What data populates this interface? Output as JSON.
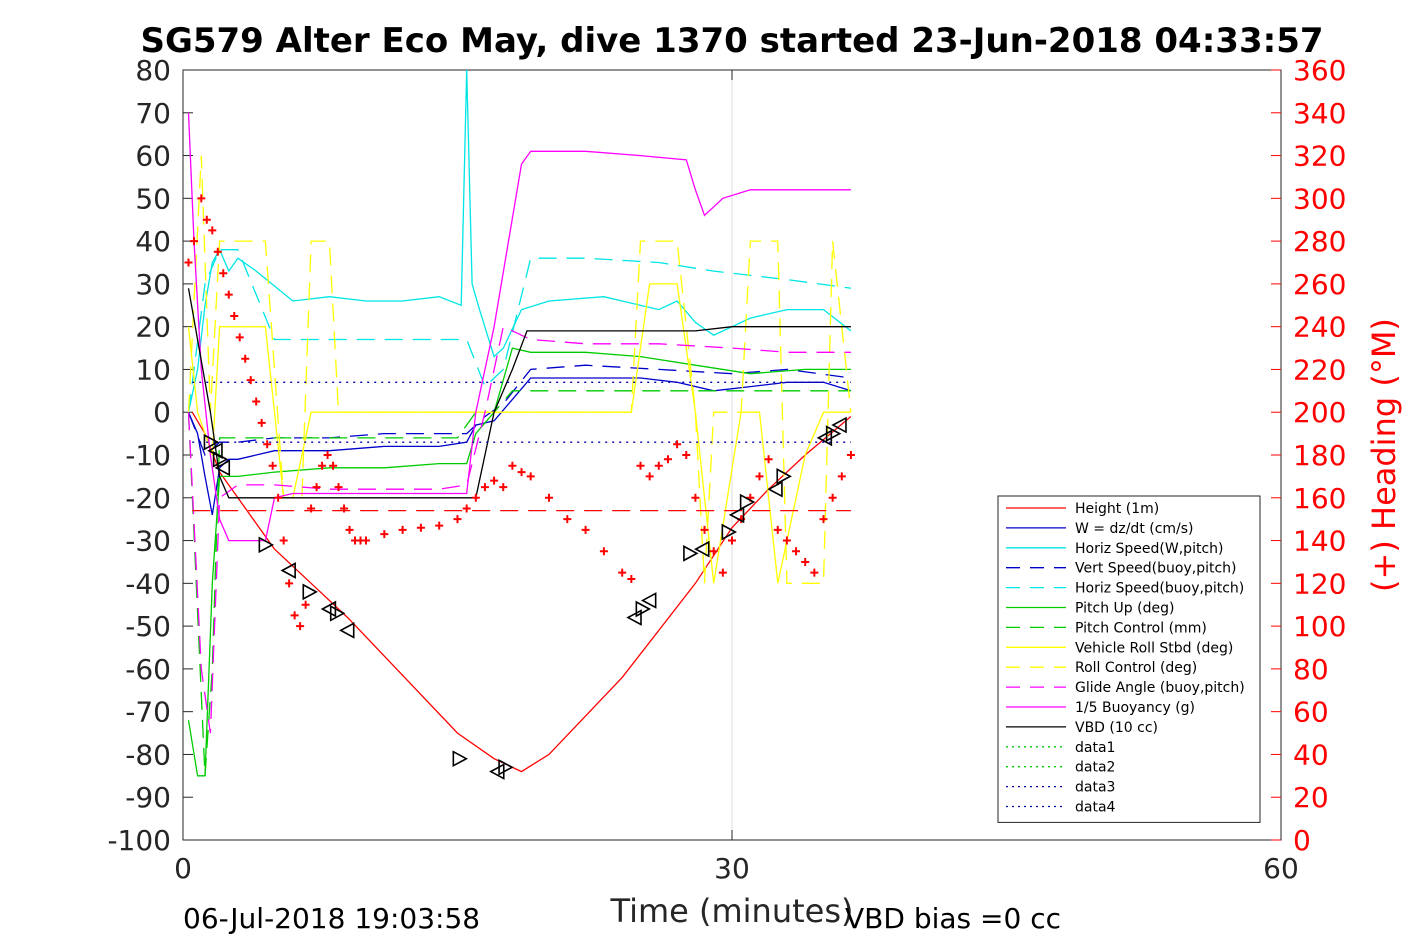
{
  "chart_data": {
    "type": "line",
    "title": "SG579 Alter Eco May, dive 1370 started 23-Jun-2018 04:33:57",
    "xlabel": "Time (minutes)",
    "ylabel": "",
    "y2label": "(+) Heading (°M)",
    "xlim": [
      0,
      60
    ],
    "ylim": [
      -100,
      80
    ],
    "y2lim": [
      0,
      360
    ],
    "xticks": [
      "0",
      "30",
      "60"
    ],
    "yticks": [
      "80",
      "70",
      "60",
      "50",
      "40",
      "30",
      "20",
      "10",
      "0",
      "-10",
      "-20",
      "-30",
      "-40",
      "-50",
      "-60",
      "-70",
      "-80",
      "-90",
      "-100"
    ],
    "y2ticks": [
      "360",
      "340",
      "320",
      "300",
      "280",
      "260",
      "240",
      "220",
      "200",
      "180",
      "160",
      "140",
      "120",
      "100",
      "80",
      "60",
      "40",
      "20",
      "0"
    ],
    "grid": "x-major",
    "legend_position": "lower-right",
    "footer_left": "06-Jul-2018 19:03:58",
    "footer_right": "VBD bias =0 cc",
    "series": [
      {
        "name": "Height (1m)",
        "color": "#ff0000",
        "style": "solid",
        "x": [
          0.5,
          1.2,
          2.0,
          3.0,
          5.0,
          7.0,
          9.0,
          11.0,
          13.0,
          15.0,
          17.0,
          18.5,
          20.0,
          22.0,
          24.0,
          26.0,
          28.0,
          30.0,
          32.0,
          34.0,
          36.5
        ],
        "y": [
          0,
          -5,
          -14,
          -20,
          -32,
          -40,
          -48,
          -57,
          -66,
          -75,
          -81,
          -84,
          -80,
          -71,
          -62,
          -51,
          -40,
          -27,
          -18,
          -10,
          -1
        ]
      },
      {
        "name": "W = dz/dt (cm/s)",
        "color": "#0000cc",
        "style": "solid",
        "x": [
          0.3,
          0.8,
          1.2,
          1.6,
          2.0,
          2.5,
          3.0,
          5.0,
          8.0,
          11.0,
          14.0,
          15.5,
          16.0,
          17.0,
          18.0,
          19.0,
          22.0,
          25.0,
          27.0,
          29.0,
          31.0,
          33.0,
          35.0,
          36.5
        ],
        "y": [
          0,
          -5,
          -15,
          -24,
          -13,
          -11,
          -11,
          -9,
          -9,
          -8,
          -8,
          -7,
          -3,
          -2,
          3,
          8,
          8,
          8,
          7,
          5,
          6,
          7,
          7,
          5
        ]
      },
      {
        "name": "Horiz Speed(W,pitch)",
        "color": "#00e5e5",
        "style": "solid",
        "x": [
          0.3,
          0.8,
          1.2,
          1.6,
          2.0,
          2.5,
          3.0,
          4.0,
          6.0,
          8.0,
          10.0,
          12.0,
          14.0,
          15.2,
          15.5,
          15.8,
          16.2,
          17.0,
          17.5,
          18.5,
          20.0,
          23.0,
          26.0,
          27.0,
          28.0,
          29.0,
          31.0,
          33.0,
          35.0,
          36.5
        ],
        "y": [
          0,
          10,
          25,
          35,
          38,
          33,
          36,
          33,
          26,
          27,
          26,
          26,
          27,
          25,
          80,
          30,
          24,
          13,
          15,
          24,
          26,
          27,
          24,
          26,
          21,
          18,
          22,
          24,
          24,
          19
        ]
      },
      {
        "name": "Vert Speed(buoy,pitch)",
        "color": "#0000cc",
        "style": "dashed",
        "x": [
          0.3,
          1.2,
          2.0,
          3.0,
          5.0,
          8.0,
          11.0,
          14.0,
          15.5,
          16.5,
          17.5,
          19.0,
          22.0,
          26.0,
          30.0,
          33.0,
          36.5
        ],
        "y": [
          0,
          -10,
          -7,
          -7,
          -6,
          -6,
          -5,
          -5,
          -5,
          -1,
          2,
          10,
          11,
          10,
          9,
          10,
          8
        ]
      },
      {
        "name": "Horiz Speed(buoy,pitch)",
        "color": "#00e5e5",
        "style": "dashed",
        "x": [
          0.3,
          1.2,
          2.0,
          3.0,
          5.0,
          8.0,
          11.0,
          14.0,
          15.5,
          16.5,
          17.5,
          19.0,
          22.0,
          26.0,
          29.0,
          33.0,
          36.5
        ],
        "y": [
          0,
          30,
          38,
          38,
          17,
          17,
          17,
          17,
          17,
          6,
          10,
          36,
          36,
          35,
          33,
          31,
          29
        ]
      },
      {
        "name": "Pitch Up (deg)",
        "color": "#00cc00",
        "style": "solid",
        "x": [
          0.3,
          0.8,
          1.2,
          1.6,
          2.0,
          2.5,
          3.0,
          5.0,
          8.0,
          11.0,
          14.0,
          15.5,
          16.0,
          17.0,
          18.0,
          19.0,
          22.0,
          25.0,
          28.0,
          31.0,
          34.0,
          36.5
        ],
        "y": [
          -72,
          -85,
          -85,
          -40,
          -15,
          -15,
          -15,
          -14,
          -13,
          -13,
          -12,
          -12,
          -5,
          0,
          15,
          14,
          14,
          13,
          11,
          9,
          10,
          10
        ]
      },
      {
        "name": "Pitch Control (mm)",
        "color": "#00cc00",
        "style": "dashed",
        "x": [
          0.3,
          1.2,
          1.6,
          2.0,
          2.5,
          4.0,
          8.0,
          12.0,
          15.0,
          16.0,
          17.0,
          18.0,
          25.0,
          30.0,
          36.5
        ],
        "y": [
          0,
          -85,
          -60,
          -6,
          -6,
          -6,
          -6,
          -6,
          -6,
          0,
          0,
          5,
          5,
          5,
          5
        ]
      },
      {
        "name": "Vehicle Roll Stbd (deg)",
        "color": "#ffff00",
        "style": "solid",
        "x": [
          0.3,
          0.8,
          1.2,
          1.6,
          2.0,
          3.0,
          4.5,
          5.5,
          6.0,
          7.0,
          8.0,
          9.0,
          10.0,
          12.0,
          15.0,
          16.0,
          17.5,
          19.0,
          22.0,
          24.5,
          25.5,
          27.0,
          28.0,
          29.0,
          30.5,
          31.5,
          32.5,
          34.0,
          35.0,
          36.5
        ],
        "y": [
          20,
          0,
          -5,
          -10,
          20,
          20,
          20,
          -20,
          -20,
          0,
          0,
          0,
          0,
          0,
          0,
          0,
          0,
          0,
          0,
          0,
          30,
          30,
          0,
          -40,
          0,
          0,
          -40,
          -10,
          0,
          0
        ]
      },
      {
        "name": "Roll Control (deg)",
        "color": "#ffff00",
        "style": "dashed",
        "x": [
          0.3,
          1.0,
          1.5,
          2.0,
          3.0,
          4.5,
          5.5,
          6.5,
          7.0,
          8.0,
          8.5,
          9.0,
          12.0,
          15.0,
          16.0,
          18.0,
          20.0,
          24.5,
          25.0,
          27.0,
          28.0,
          28.5,
          29.0,
          30.5,
          31.0,
          32.5,
          33.0,
          35.0,
          35.5,
          36.5
        ],
        "y": [
          0,
          60,
          0,
          40,
          40,
          40,
          -20,
          -20,
          40,
          40,
          0,
          0,
          0,
          0,
          0,
          0,
          0,
          0,
          40,
          40,
          0,
          -40,
          0,
          0,
          40,
          40,
          -40,
          -40,
          40,
          0
        ]
      },
      {
        "name": "Glide Angle (buoy,pitch)",
        "color": "#ff00ff",
        "style": "dashed",
        "x": [
          0.3,
          1.0,
          1.5,
          2.0,
          3.0,
          5.0,
          8.0,
          11.0,
          14.0,
          15.5,
          16.5,
          17.5,
          19.0,
          22.0,
          26.0,
          30.0,
          33.0,
          36.5
        ],
        "y": [
          0,
          -60,
          -75,
          -20,
          -17,
          -17,
          -18,
          -18,
          -18,
          -17,
          0,
          20,
          17,
          16,
          16,
          15,
          14,
          14
        ]
      },
      {
        "name": "1/5 Buoyancy (g)",
        "color": "#ff00ff",
        "style": "solid",
        "x": [
          0.3,
          0.6,
          1.0,
          1.5,
          2.0,
          2.5,
          4.5,
          5.0,
          6.0,
          8.0,
          10.0,
          12.0,
          14.0,
          15.5,
          16.0,
          17.0,
          18.5,
          19.0,
          22.0,
          25.0,
          27.5,
          28.0,
          28.5,
          29.5,
          31.0,
          34.0,
          36.5
        ],
        "y": [
          70,
          40,
          10,
          -10,
          -25,
          -30,
          -30,
          -20,
          -19,
          -19,
          -19,
          -19,
          -19,
          -19,
          0,
          20,
          58,
          61,
          61,
          60,
          59,
          52,
          46,
          50,
          52,
          52,
          52
        ]
      },
      {
        "name": "VBD (10 cc)",
        "color": "#000000",
        "style": "solid",
        "x": [
          0.3,
          1.5,
          2.0,
          2.5,
          4.0,
          8.0,
          12.0,
          15.0,
          16.0,
          17.0,
          18.0,
          18.8,
          20.0,
          24.0,
          28.0,
          30.0,
          33.0,
          36.5
        ],
        "y": [
          29,
          0,
          -15,
          -20,
          -20,
          -20,
          -20,
          -20,
          -20,
          0,
          10,
          19,
          19,
          19,
          19,
          20,
          20,
          20
        ]
      },
      {
        "name": "data1",
        "color": "#00cc00",
        "style": "dotted",
        "x": [],
        "y": []
      },
      {
        "name": "data2",
        "color": "#00cc00",
        "style": "dotted",
        "x": [],
        "y": []
      },
      {
        "name": "data3",
        "color": "#0000aa",
        "style": "dotted",
        "x": [
          0.5,
          36.5
        ],
        "y": [
          7,
          7
        ]
      },
      {
        "name": "data4",
        "color": "#0000aa",
        "style": "dotted",
        "x": [
          0.5,
          36.5
        ],
        "y": [
          -7,
          -7
        ]
      }
    ],
    "reference_line": {
      "color": "#ff0000",
      "style": "dashed",
      "x": [
        0.5,
        36.5
      ],
      "y": [
        -23,
        -23
      ]
    },
    "heading_markers": {
      "color": "#ff0000",
      "marker": "+",
      "x": [
        0.3,
        0.6,
        1.0,
        1.3,
        1.6,
        1.9,
        2.2,
        2.5,
        2.8,
        3.1,
        3.4,
        3.7,
        4.0,
        4.3,
        4.6,
        4.9,
        5.2,
        5.5,
        5.8,
        6.1,
        6.4,
        6.7,
        7.0,
        7.3,
        7.6,
        7.9,
        8.2,
        8.5,
        8.8,
        9.1,
        9.4,
        9.7,
        10.0,
        11.0,
        12.0,
        13.0,
        14.0,
        15.0,
        15.5,
        16.0,
        16.5,
        17.0,
        17.5,
        18.0,
        18.5,
        19.0,
        20.0,
        21.0,
        22.0,
        23.0,
        24.0,
        24.5,
        25.0,
        25.5,
        26.0,
        26.5,
        27.0,
        27.5,
        28.0,
        28.5,
        29.0,
        29.5,
        30.0,
        30.5,
        31.0,
        31.5,
        32.0,
        32.5,
        33.0,
        33.5,
        34.0,
        34.5,
        35.0,
        35.5,
        36.0,
        36.5
      ],
      "y": [
        270,
        280,
        300,
        290,
        285,
        275,
        265,
        255,
        245,
        235,
        225,
        215,
        205,
        195,
        185,
        175,
        160,
        140,
        120,
        105,
        100,
        110,
        155,
        165,
        175,
        180,
        175,
        165,
        155,
        145,
        140,
        140,
        140,
        143,
        145,
        146,
        147,
        150,
        155,
        160,
        165,
        168,
        165,
        175,
        172,
        170,
        160,
        150,
        145,
        135,
        125,
        122,
        175,
        170,
        175,
        178,
        185,
        180,
        160,
        145,
        135,
        125,
        140,
        150,
        160,
        170,
        178,
        145,
        140,
        135,
        130,
        125,
        150,
        160,
        170,
        180
      ]
    },
    "depth_markers": {
      "color": "#000000",
      "x": [
        1.5,
        1.8,
        2.0,
        2.2,
        4.5,
        5.8,
        6.9,
        8.0,
        8.4,
        9.0,
        15.1,
        17.2,
        17.6,
        24.7,
        25.1,
        25.5,
        27.7,
        28.4,
        29.8,
        30.3,
        30.8,
        32.4,
        32.8,
        35.1,
        35.5,
        35.9
      ],
      "y": [
        -7,
        -9,
        -11,
        -13,
        -31,
        -37,
        -42,
        -46,
        -47,
        -51,
        -81,
        -84,
        -83,
        -48,
        -46,
        -44,
        -33,
        -32,
        -28,
        -24,
        -21,
        -18,
        -15,
        -6,
        -5,
        -3
      ]
    }
  }
}
